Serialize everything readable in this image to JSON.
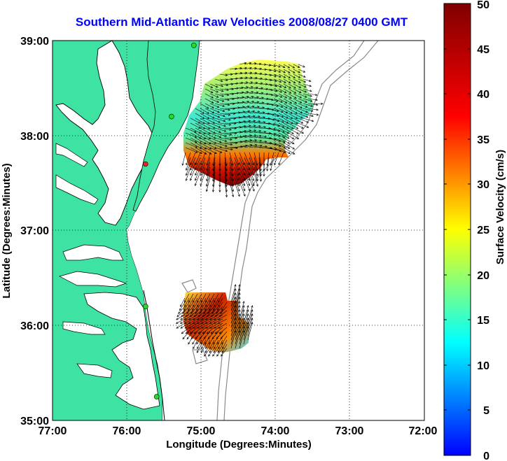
{
  "title": "Southern Mid-Atlantic Raw Velocities 2008/08/27 0400 GMT",
  "x_axis": {
    "label": "Longitude (Degrees:Minutes)",
    "ticks": [
      "77:00",
      "76:00",
      "75:00",
      "74:00",
      "73:00",
      "72:00"
    ],
    "range": [
      -77,
      -72
    ]
  },
  "y_axis": {
    "label": "Latitude (Degrees:Minutes)",
    "ticks": [
      "39:00",
      "38:00",
      "37:00",
      "36:00",
      "35:00"
    ],
    "range": [
      35,
      39
    ]
  },
  "colorbar": {
    "label": "Surface Velocity (cm/s)",
    "ticks": [
      "0",
      "5",
      "10",
      "15",
      "20",
      "25",
      "30",
      "35",
      "40",
      "45",
      "50"
    ],
    "range": [
      0,
      50
    ],
    "colormap": "jet"
  },
  "colors": {
    "land": "#3ee2a3",
    "water": "#ffffff",
    "coastline": "#000000",
    "isobath": "#8a8a8a",
    "vectors": "#000000",
    "title": "#0000ff",
    "site_active": "#22dd22",
    "site_inactive": "#ee2222"
  },
  "grid": "dotted",
  "hf_radar_sites": [
    {
      "lon": -75.1,
      "lat": 38.95,
      "status": "active"
    },
    {
      "lon": -75.4,
      "lat": 38.2,
      "status": "active"
    },
    {
      "lon": -75.75,
      "lat": 37.7,
      "status": "inactive"
    },
    {
      "lon": -75.75,
      "lat": 36.2,
      "status": "active"
    },
    {
      "lon": -75.6,
      "lat": 35.25,
      "status": "active"
    }
  ]
}
